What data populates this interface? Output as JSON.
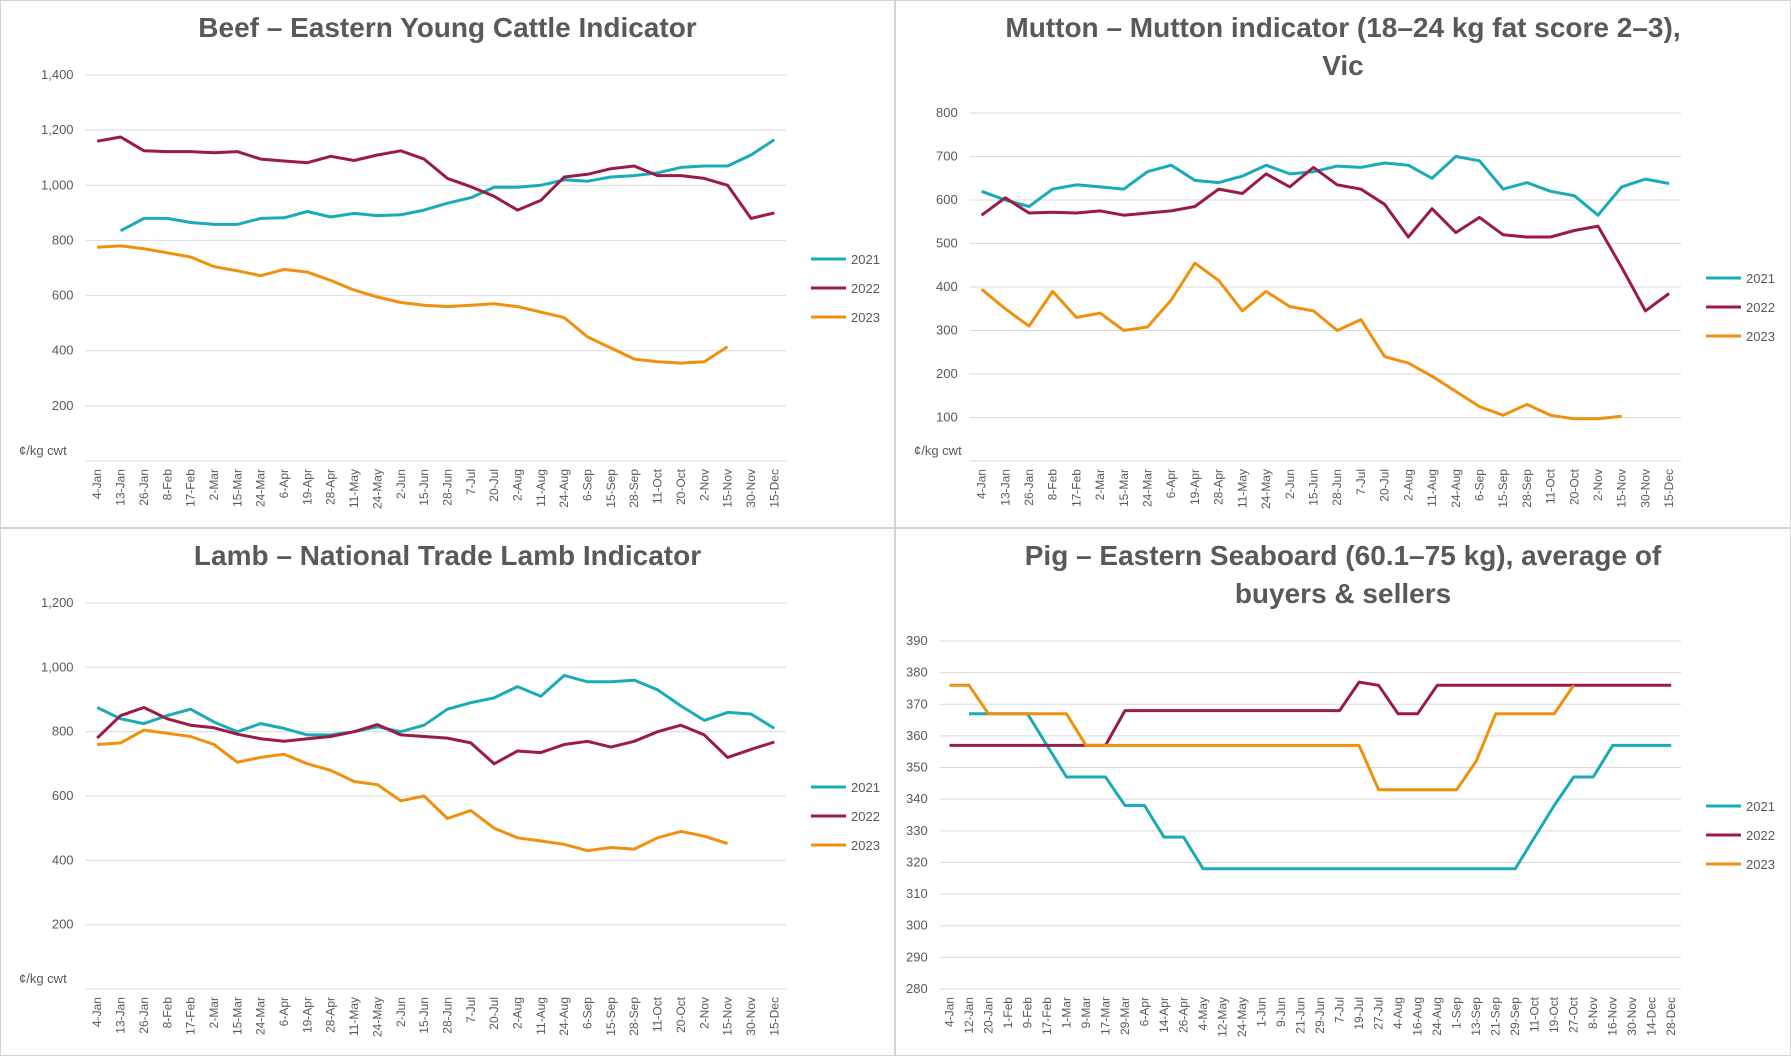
{
  "chart_data": [
    {
      "type": "line",
      "title": "Beef – Eastern Young Cattle Indicator",
      "y_label": "¢/kg cwt",
      "categories": [
        "4-Jan",
        "13-Jan",
        "26-Jan",
        "8-Feb",
        "17-Feb",
        "2-Mar",
        "15-Mar",
        "24-Mar",
        "6-Apr",
        "19-Apr",
        "28-Apr",
        "11-May",
        "24-May",
        "2-Jun",
        "15-Jun",
        "28-Jun",
        "7-Jul",
        "20-Jul",
        "2-Aug",
        "11-Aug",
        "24-Aug",
        "6-Sep",
        "15-Sep",
        "28-Sep",
        "11-Oct",
        "20-Oct",
        "2-Nov",
        "15-Nov",
        "30-Nov",
        "15-Dec"
      ],
      "series": [
        {
          "name": "2021",
          "color": "#1aabb8",
          "values": [
            null,
            835,
            880,
            880,
            865,
            858,
            858,
            880,
            882,
            905,
            885,
            898,
            890,
            893,
            910,
            935,
            955,
            993,
            993,
            1000,
            1020,
            1015,
            1030,
            1035,
            1045,
            1065,
            1070,
            1070,
            1110,
            1165
          ]
        },
        {
          "name": "2022",
          "color": "#9b1b48",
          "values": [
            1160,
            1175,
            1125,
            1122,
            1122,
            1118,
            1122,
            1095,
            1088,
            1082,
            1105,
            1090,
            1110,
            1125,
            1095,
            1025,
            995,
            960,
            910,
            945,
            1030,
            1040,
            1060,
            1070,
            1035,
            1035,
            1025,
            1000,
            880,
            900
          ]
        },
        {
          "name": "2023",
          "color": "#f0900d",
          "values": [
            775,
            780,
            770,
            755,
            740,
            705,
            690,
            672,
            695,
            685,
            655,
            620,
            595,
            575,
            565,
            560,
            565,
            570,
            560,
            540,
            520,
            450,
            410,
            370,
            360,
            355,
            360,
            415,
            null,
            null
          ]
        }
      ],
      "ylim": [
        0,
        1400
      ],
      "yticks": [
        200,
        400,
        600,
        800,
        {
          "value": 1000,
          "label": "1,000"
        },
        {
          "value": 1200,
          "label": "1,200"
        },
        {
          "value": 1400,
          "label": "1,400"
        }
      ],
      "grid": true,
      "legend": "right"
    },
    {
      "type": "line",
      "title": "Mutton – Mutton indicator (18–24 kg fat score 2–3), Vic",
      "y_label": "¢/kg cwt",
      "categories": [
        "4-Jan",
        "13-Jan",
        "26-Jan",
        "8-Feb",
        "17-Feb",
        "2-Mar",
        "15-Mar",
        "24-Mar",
        "6-Apr",
        "19-Apr",
        "28-Apr",
        "11-May",
        "24-May",
        "2-Jun",
        "15-Jun",
        "28-Jun",
        "7-Jul",
        "20-Jul",
        "2-Aug",
        "11-Aug",
        "24-Aug",
        "6-Sep",
        "15-Sep",
        "28-Sep",
        "11-Oct",
        "20-Oct",
        "2-Nov",
        "15-Nov",
        "30-Nov",
        "15-Dec"
      ],
      "series": [
        {
          "name": "2021",
          "color": "#1aabb8",
          "values": [
            620,
            600,
            585,
            625,
            635,
            630,
            625,
            665,
            680,
            645,
            640,
            655,
            680,
            660,
            665,
            678,
            675,
            685,
            680,
            650,
            700,
            690,
            625,
            640,
            620,
            610,
            565,
            630,
            648,
            638
          ]
        },
        {
          "name": "2022",
          "color": "#9b1b48",
          "values": [
            565,
            605,
            570,
            572,
            570,
            575,
            565,
            570,
            575,
            585,
            625,
            615,
            660,
            630,
            675,
            635,
            625,
            590,
            515,
            580,
            525,
            560,
            520,
            515,
            515,
            530,
            540,
            445,
            345,
            385
          ]
        },
        {
          "name": "2023",
          "color": "#f0900d",
          "values": [
            395,
            350,
            310,
            390,
            330,
            340,
            300,
            308,
            370,
            455,
            415,
            345,
            390,
            355,
            345,
            300,
            325,
            240,
            225,
            195,
            160,
            125,
            105,
            130,
            105,
            97,
            97,
            103,
            null,
            null
          ]
        }
      ],
      "ylim": [
        0,
        800
      ],
      "yticks": [
        100,
        200,
        300,
        400,
        500,
        600,
        700,
        800
      ],
      "grid": true,
      "legend": "right"
    },
    {
      "type": "line",
      "title": "Lamb – National Trade Lamb Indicator",
      "y_label": "¢/kg cwt",
      "categories": [
        "4-Jan",
        "13-Jan",
        "26-Jan",
        "8-Feb",
        "17-Feb",
        "2-Mar",
        "15-Mar",
        "24-Mar",
        "6-Apr",
        "19-Apr",
        "28-Apr",
        "11-May",
        "24-May",
        "2-Jun",
        "15-Jun",
        "28-Jun",
        "7-Jul",
        "20-Jul",
        "2-Aug",
        "11-Aug",
        "24-Aug",
        "6-Sep",
        "15-Sep",
        "28-Sep",
        "11-Oct",
        "20-Oct",
        "2-Nov",
        "15-Nov",
        "30-Nov",
        "15-Dec"
      ],
      "series": [
        {
          "name": "2021",
          "color": "#1aabb8",
          "values": [
            875,
            840,
            825,
            850,
            870,
            830,
            800,
            825,
            810,
            790,
            790,
            800,
            815,
            800,
            820,
            870,
            890,
            905,
            940,
            910,
            975,
            955,
            955,
            960,
            930,
            880,
            835,
            860,
            855,
            810
          ]
        },
        {
          "name": "2022",
          "color": "#9b1b48",
          "values": [
            780,
            850,
            875,
            840,
            820,
            812,
            792,
            778,
            770,
            778,
            785,
            800,
            822,
            790,
            785,
            780,
            765,
            700,
            740,
            735,
            760,
            770,
            752,
            770,
            800,
            820,
            790,
            720,
            745,
            768
          ]
        },
        {
          "name": "2023",
          "color": "#f0900d",
          "values": [
            760,
            765,
            805,
            795,
            785,
            760,
            705,
            720,
            730,
            700,
            680,
            645,
            635,
            585,
            600,
            530,
            555,
            500,
            470,
            460,
            450,
            430,
            440,
            435,
            470,
            490,
            475,
            452,
            null,
            null
          ]
        }
      ],
      "ylim": [
        0,
        1200
      ],
      "yticks": [
        200,
        400,
        600,
        800,
        {
          "value": 1000,
          "label": "1,000"
        },
        {
          "value": 1200,
          "label": "1,200"
        }
      ],
      "grid": true,
      "legend": "right"
    },
    {
      "type": "line",
      "title": "Pig – Eastern Seaboard (60.1–75 kg), average of buyers & sellers",
      "categories": [
        "4-Jan",
        "12-Jan",
        "20-Jan",
        "1-Feb",
        "9-Feb",
        "17-Feb",
        "1-Mar",
        "9-Mar",
        "17-Mar",
        "29-Mar",
        "6-Apr",
        "14-Apr",
        "26-Apr",
        "4-May",
        "12-May",
        "24-May",
        "1-Jun",
        "9-Jun",
        "21-Jun",
        "29-Jun",
        "7-Jul",
        "19-Jul",
        "27-Jul",
        "4-Aug",
        "16-Aug",
        "24-Aug",
        "1-Sep",
        "13-Sep",
        "21-Sep",
        "29-Sep",
        "11-Oct",
        "19-Oct",
        "27-Oct",
        "8-Nov",
        "16-Nov",
        "30-Nov",
        "14-Dec",
        "28-Dec"
      ],
      "series": [
        {
          "name": "2021",
          "color": "#1aabb8",
          "values": [
            null,
            367,
            367,
            367,
            367,
            357,
            347,
            347,
            347,
            338,
            338,
            328,
            328,
            318,
            318,
            318,
            318,
            318,
            318,
            318,
            318,
            318,
            318,
            318,
            318,
            318,
            318,
            318,
            318,
            318,
            328,
            338,
            347,
            347,
            357,
            357,
            357,
            357
          ]
        },
        {
          "name": "2022",
          "color": "#9b1b48",
          "values": [
            357,
            357,
            357,
            357,
            357,
            357,
            357,
            357,
            357,
            368,
            368,
            368,
            368,
            368,
            368,
            368,
            368,
            368,
            368,
            368,
            368,
            377,
            376,
            367,
            367,
            376,
            376,
            376,
            376,
            376,
            376,
            376,
            376,
            376,
            376,
            376,
            376,
            376
          ]
        },
        {
          "name": "2023",
          "color": "#f0900d",
          "values": [
            376,
            376,
            367,
            367,
            367,
            367,
            367,
            357,
            357,
            357,
            357,
            357,
            357,
            357,
            357,
            357,
            357,
            357,
            357,
            357,
            357,
            357,
            343,
            343,
            343,
            343,
            343,
            352,
            367,
            367,
            367,
            367,
            376,
            null,
            null,
            null,
            null,
            null
          ]
        }
      ],
      "ylim": [
        280,
        390
      ],
      "yticks": [
        280,
        290,
        300,
        310,
        320,
        330,
        340,
        350,
        360,
        370,
        380,
        390
      ],
      "grid": true,
      "legend": "right"
    }
  ]
}
